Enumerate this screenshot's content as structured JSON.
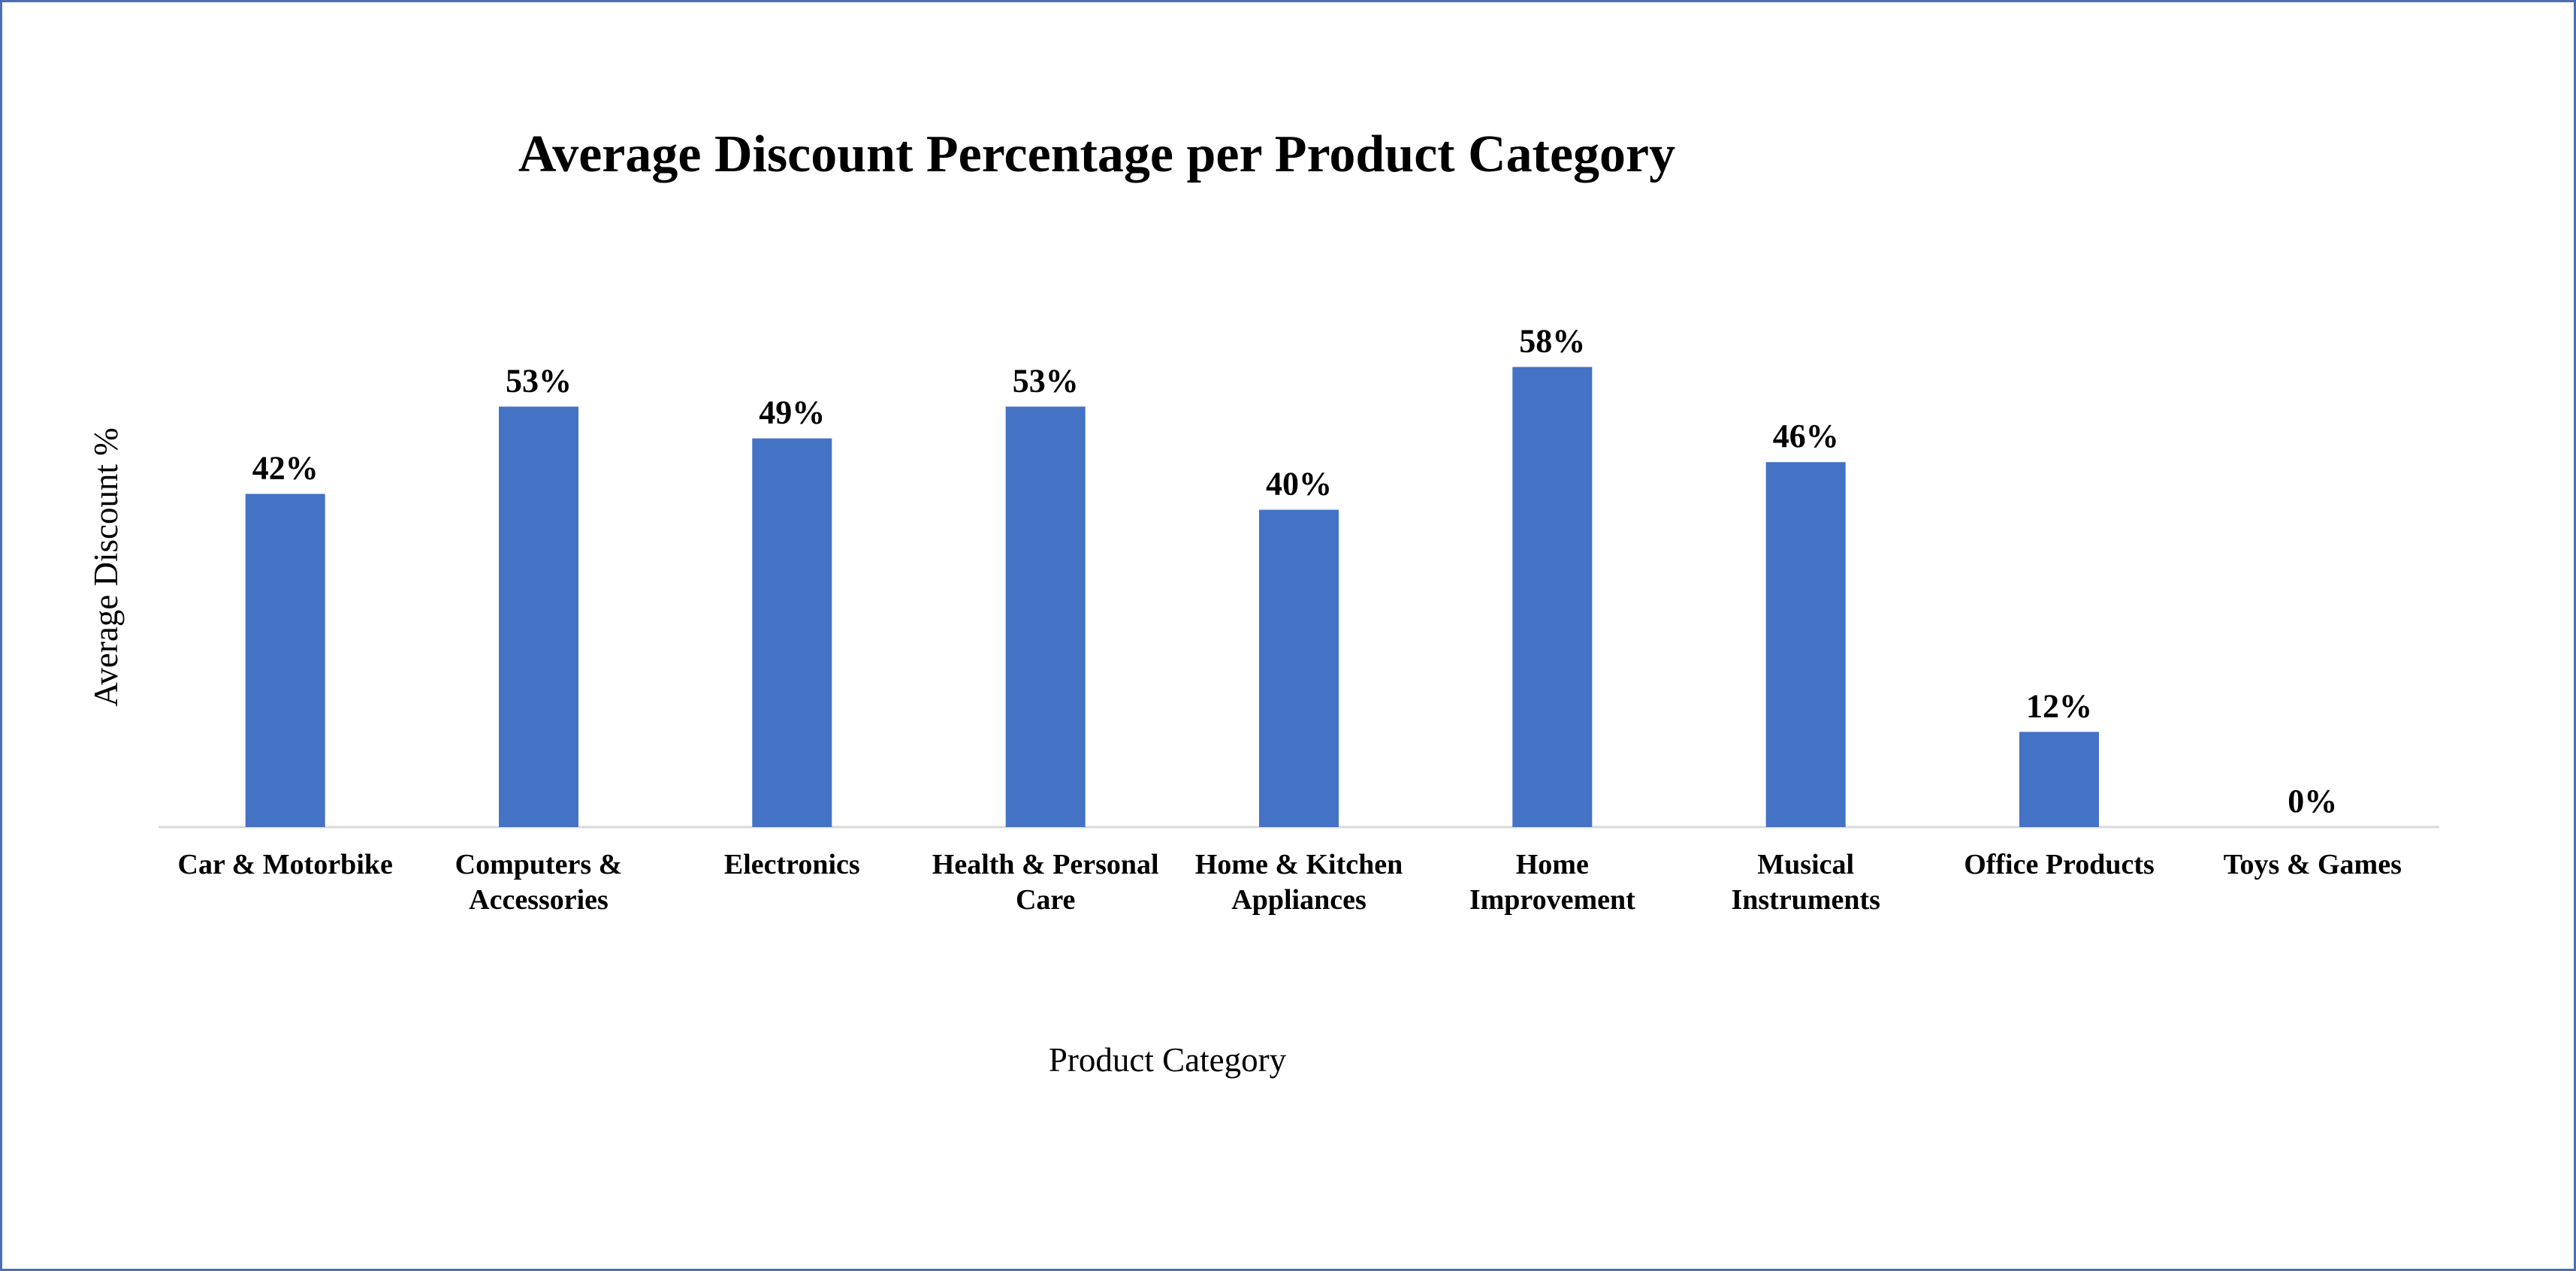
{
  "chart_data": {
    "type": "bar",
    "title": "Average Discount Percentage per Product Category",
    "xlabel": "Product Category",
    "ylabel": "Average Discount %",
    "categories": [
      "Car & Motorbike",
      "Computers & Accessories",
      "Electronics",
      "Health & Personal Care",
      "Home & Kitchen Appliances",
      "Home Improvement",
      "Musical Instruments",
      "Office Products",
      "Toys & Games"
    ],
    "category_lines": [
      [
        "Car & Motorbike"
      ],
      [
        "Computers &",
        "Accessories"
      ],
      [
        "Electronics"
      ],
      [
        "Health & Personal",
        "Care"
      ],
      [
        "Home & Kitchen",
        "Appliances"
      ],
      [
        "Home",
        "Improvement"
      ],
      [
        "Musical",
        "Instruments"
      ],
      [
        "Office Products"
      ],
      [
        "Toys & Games"
      ]
    ],
    "values": [
      42,
      53,
      49,
      53,
      40,
      58,
      46,
      12,
      0
    ],
    "data_labels": [
      "42%",
      "53%",
      "49%",
      "53%",
      "40%",
      "58%",
      "46%",
      "12%",
      "0%"
    ],
    "ylim": [
      0,
      100
    ],
    "grid": false,
    "legend": "none",
    "bar_color": "#4472C4",
    "axis_color": "#D9D9D9"
  }
}
